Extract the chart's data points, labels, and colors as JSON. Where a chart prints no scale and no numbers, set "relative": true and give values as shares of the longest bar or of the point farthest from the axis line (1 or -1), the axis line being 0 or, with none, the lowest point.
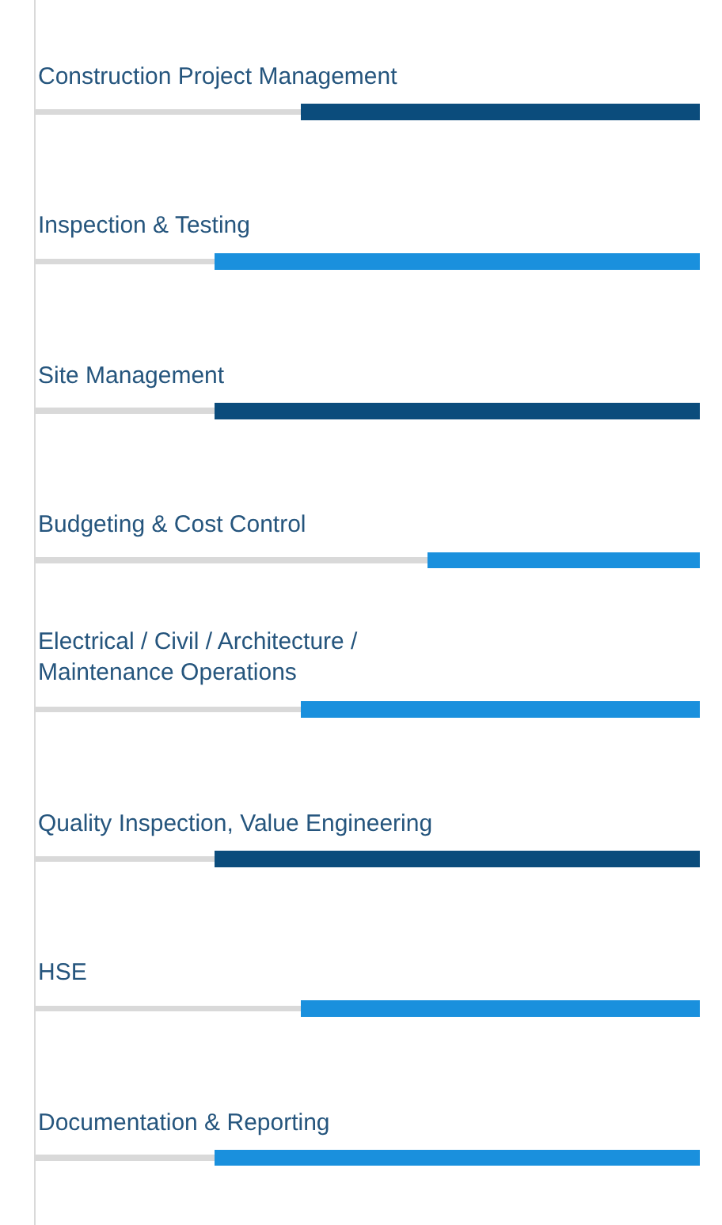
{
  "chart_data": {
    "type": "bar",
    "orientation": "horizontal",
    "stacked": true,
    "relative": true,
    "categories": [
      "Construction Project Management",
      "Inspection & Testing",
      "Site Management",
      "Budgeting & Cost Control",
      "Electrical / Civil / Architecture / Maintenance Operations",
      "Quality Inspection, Value Engineering",
      "HSE",
      "Documentation & Reporting"
    ],
    "series": [
      {
        "color": "#d9d9d9",
        "values": [
          0.4,
          0.27,
          0.27,
          0.59,
          0.4,
          0.27,
          0.4,
          0.27
        ]
      },
      {
        "colors": [
          "#0b4c7c",
          "#1a90dd",
          "#0b4c7c",
          "#1a90dd",
          "#1a90dd",
          "#0b4c7c",
          "#1a90dd",
          "#1a90dd"
        ],
        "values": [
          0.6,
          0.73,
          0.73,
          0.41,
          0.6,
          0.73,
          0.6,
          0.73
        ]
      }
    ]
  }
}
